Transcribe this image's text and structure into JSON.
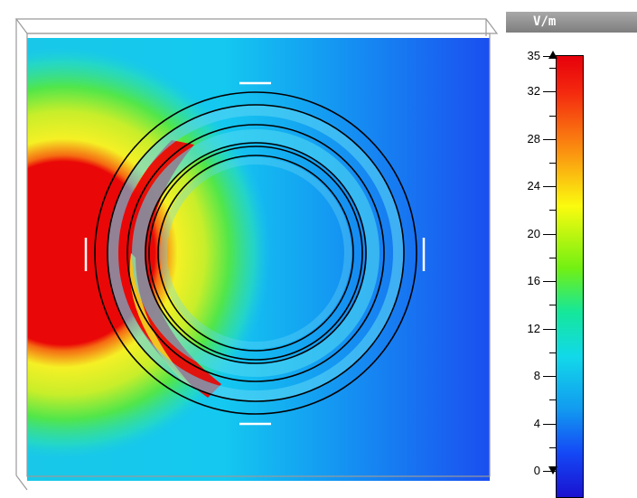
{
  "colorbar": {
    "unit_label": "V/m",
    "ticks": [
      35,
      32,
      28,
      24,
      20,
      16,
      12,
      8,
      4,
      0
    ],
    "colors": [
      "#e6000b",
      "#fb9410",
      "#fbfb0f",
      "#73f012",
      "#12d9e9",
      "#129bf0",
      "#1a12d0"
    ]
  },
  "field_view": {
    "background_colors": {
      "hot": "#ea0707",
      "warm": "#f2f222",
      "mid": "#2fe7b0",
      "cool": "#13b8ee",
      "cold": "#1b4bf0"
    },
    "structure": "concentric-split-ring-resonators",
    "ring_count": 3,
    "ring_outline_color": "#000000",
    "gap_marker_color": "#ffffff"
  }
}
